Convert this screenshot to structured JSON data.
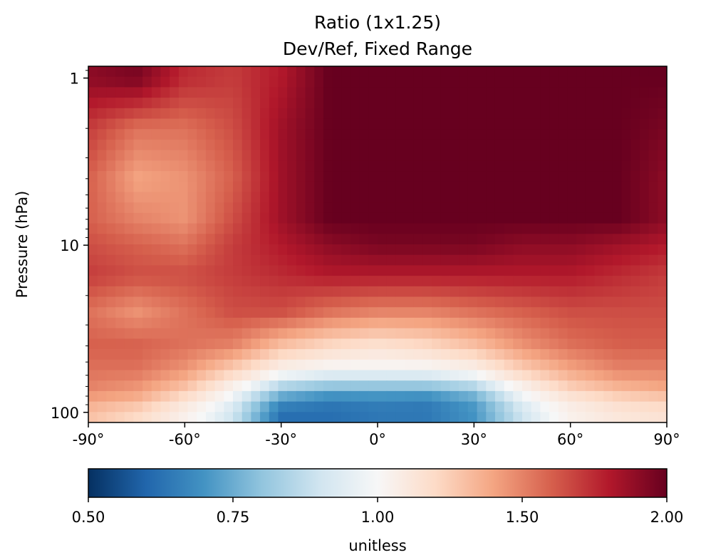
{
  "chart_data": {
    "type": "heatmap",
    "title": "Ratio (1x1.25)",
    "subtitle": "Dev/Ref, Fixed Range",
    "xlabel": "",
    "ylabel": "Pressure (hPa)",
    "xlim": [
      -90,
      90
    ],
    "ylim": [
      115,
      0.85
    ],
    "y_scale": "log",
    "x_ticks": [
      {
        "value": -90,
        "label": "-90°"
      },
      {
        "value": -60,
        "label": "-60°"
      },
      {
        "value": -30,
        "label": "-30°"
      },
      {
        "value": 0,
        "label": "0°"
      },
      {
        "value": 30,
        "label": "30°"
      },
      {
        "value": 60,
        "label": "60°"
      },
      {
        "value": 90,
        "label": "90°"
      }
    ],
    "y_ticks": [
      {
        "value": 1,
        "label": "1"
      },
      {
        "value": 10,
        "label": "10"
      },
      {
        "value": 100,
        "label": "100"
      }
    ],
    "colorbar": {
      "label": "unitless",
      "colormap": "RdBu_r",
      "range": [
        0.5,
        2.0
      ],
      "ticks": [
        {
          "value": 0.5,
          "label": "0.50"
        },
        {
          "value": 0.75,
          "label": "0.75"
        },
        {
          "value": 1.0,
          "label": "1.00"
        },
        {
          "value": 1.5,
          "label": "1.50"
        },
        {
          "value": 2.0,
          "label": "2.00"
        }
      ],
      "colors": [
        "#053061",
        "#2166ac",
        "#4393c3",
        "#92c5de",
        "#d1e5f0",
        "#f7f7f7",
        "#fddbc7",
        "#f4a582",
        "#d6604d",
        "#b2182b",
        "#67001f"
      ]
    },
    "x_centers": [
      -90,
      -75,
      -60,
      -45,
      -30,
      -15,
      0,
      15,
      30,
      45,
      60,
      75,
      90
    ],
    "y_levels": [
      1,
      2,
      4,
      7,
      10,
      15,
      25,
      40,
      55,
      70,
      85,
      100
    ],
    "values": [
      [
        1.9,
        1.95,
        1.75,
        1.7,
        1.8,
        2.0,
        2.0,
        2.0,
        2.0,
        2.0,
        2.0,
        2.0,
        2.0
      ],
      [
        1.7,
        1.55,
        1.55,
        1.65,
        1.85,
        2.0,
        2.0,
        2.0,
        2.0,
        2.0,
        2.0,
        2.0,
        1.95
      ],
      [
        1.6,
        1.4,
        1.45,
        1.6,
        1.85,
        2.0,
        2.0,
        2.0,
        2.0,
        2.0,
        2.0,
        2.0,
        1.9
      ],
      [
        1.6,
        1.5,
        1.45,
        1.65,
        1.85,
        2.0,
        2.0,
        2.0,
        2.0,
        2.0,
        2.0,
        2.0,
        1.9
      ],
      [
        1.65,
        1.6,
        1.55,
        1.7,
        1.8,
        1.9,
        1.95,
        1.95,
        1.95,
        1.9,
        1.9,
        1.85,
        1.8
      ],
      [
        1.7,
        1.65,
        1.65,
        1.7,
        1.75,
        1.8,
        1.8,
        1.8,
        1.8,
        1.8,
        1.8,
        1.75,
        1.7
      ],
      [
        1.55,
        1.45,
        1.55,
        1.65,
        1.65,
        1.55,
        1.5,
        1.5,
        1.55,
        1.6,
        1.65,
        1.65,
        1.65
      ],
      [
        1.6,
        1.6,
        1.55,
        1.5,
        1.3,
        1.2,
        1.15,
        1.2,
        1.3,
        1.45,
        1.55,
        1.6,
        1.6
      ],
      [
        1.55,
        1.55,
        1.45,
        1.25,
        1.05,
        1.0,
        1.0,
        1.0,
        1.05,
        1.25,
        1.4,
        1.5,
        1.5
      ],
      [
        1.5,
        1.45,
        1.3,
        1.05,
        0.85,
        0.8,
        0.8,
        0.8,
        0.85,
        1.05,
        1.25,
        1.35,
        1.4
      ],
      [
        1.4,
        1.35,
        1.15,
        0.95,
        0.7,
        0.65,
        0.66,
        0.65,
        0.72,
        0.95,
        1.1,
        1.2,
        1.25
      ],
      [
        1.3,
        1.2,
        1.05,
        0.9,
        0.62,
        0.62,
        0.64,
        0.64,
        0.7,
        0.9,
        1.05,
        1.12,
        1.15
      ]
    ]
  }
}
